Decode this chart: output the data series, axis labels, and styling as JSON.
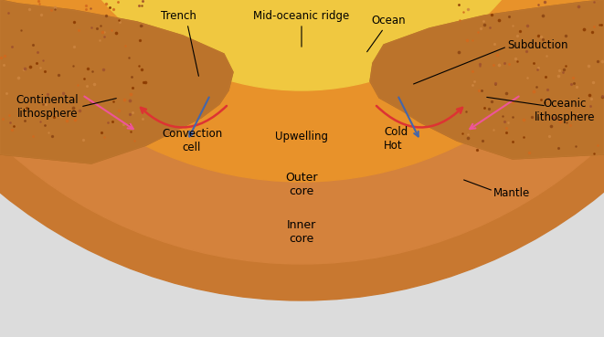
{
  "bg_color": "#e8e8e8",
  "title": "",
  "labels": {
    "trench": "Trench",
    "mid_oceanic_ridge": "Mid-oceanic ridge",
    "ocean": "Ocean",
    "subduction": "Subduction",
    "continental_lithosphere": "Continental\nlithosphere",
    "oceanic_lithosphere": "Oceanic\nlithosphere",
    "convection_cell": "Convection\ncell",
    "upwelling": "Upwelling",
    "cold": "Cold",
    "hot": "Hot",
    "outer_core": "Outer\ncore",
    "inner_core": "Inner\ncore",
    "mantle": "Mantle"
  },
  "colors": {
    "background": "#dcdcdc",
    "outer_mantle": "#c8622a",
    "inner_mantle_orange": "#e8852a",
    "outer_core_yellow": "#f5d060",
    "inner_core_bright": "#f8e080",
    "crust_green": "#8ab870",
    "crust_blue_rim": "#6090b0",
    "ocean_surface": "#88bbcc",
    "continental_brown": "#b07030",
    "continental_texture": "#c8883a",
    "upwelling_red": "#cc2222",
    "convection_arrow": "#aa1111",
    "ridge_white": "#e8dcc8",
    "mantle_dark_red": "#8b1a1a",
    "arrow_dark": "#555533"
  }
}
